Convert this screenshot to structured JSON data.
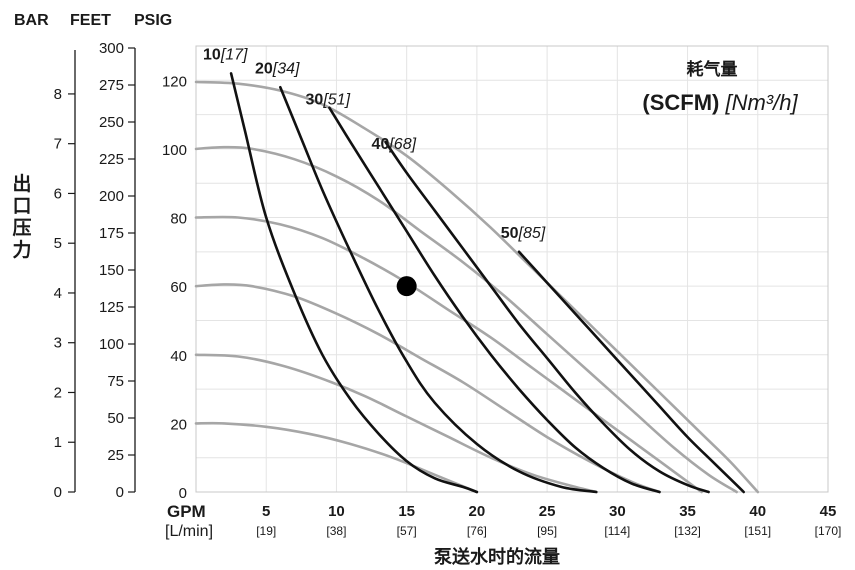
{
  "chart_data": {
    "type": "line",
    "title": "耗气量",
    "subtitle_bold": "(SCFM)",
    "subtitle_italic": "[Nm³/h]",
    "xlabel": "泵送水时的流量",
    "ylabel": "出口压力",
    "unit_header": {
      "bar": "BAR",
      "feet": "FEET",
      "psig": "PSIG"
    },
    "x_unit_primary": "GPM",
    "x_unit_secondary": "[L/min]",
    "xlim": [
      0,
      45
    ],
    "ylim": [
      0,
      130
    ],
    "grid": true,
    "x_ticks": [
      {
        "gpm": 5,
        "lmin": "[19]"
      },
      {
        "gpm": 10,
        "lmin": "[38]"
      },
      {
        "gpm": 15,
        "lmin": "[57]"
      },
      {
        "gpm": 20,
        "lmin": "[76]"
      },
      {
        "gpm": 25,
        "lmin": "[95]"
      },
      {
        "gpm": 30,
        "lmin": "[114]"
      },
      {
        "gpm": 35,
        "lmin": "[132]"
      },
      {
        "gpm": 40,
        "lmin": "[151]"
      },
      {
        "gpm": 45,
        "lmin": "[170]"
      }
    ],
    "psig_ticks": [
      0,
      20,
      40,
      60,
      80,
      100,
      120
    ],
    "feet_ticks": [
      0,
      25,
      50,
      75,
      100,
      125,
      150,
      175,
      200,
      225,
      250,
      275,
      300
    ],
    "bar_ticks": [
      0,
      1,
      2,
      3,
      4,
      5,
      6,
      7,
      8
    ],
    "gray_curves": [
      {
        "points": [
          [
            0,
            119.5
          ],
          [
            3,
            119
          ],
          [
            6,
            117
          ],
          [
            9,
            113
          ],
          [
            12,
            106
          ],
          [
            15,
            98
          ],
          [
            18,
            88
          ],
          [
            21,
            77
          ],
          [
            24,
            65
          ],
          [
            27,
            53
          ],
          [
            30,
            41
          ],
          [
            33,
            29
          ],
          [
            36,
            17
          ],
          [
            38,
            9
          ],
          [
            40,
            0
          ]
        ]
      },
      {
        "points": [
          [
            0,
            100
          ],
          [
            2,
            100.5
          ],
          [
            4,
            100
          ],
          [
            7,
            97
          ],
          [
            10,
            92
          ],
          [
            13,
            85
          ],
          [
            16,
            76
          ],
          [
            19,
            67
          ],
          [
            22,
            57
          ],
          [
            25,
            46
          ],
          [
            28,
            35
          ],
          [
            31,
            24
          ],
          [
            34,
            13
          ],
          [
            36.5,
            5
          ],
          [
            38.5,
            0
          ]
        ]
      },
      {
        "points": [
          [
            0,
            80
          ],
          [
            3,
            80
          ],
          [
            6,
            78
          ],
          [
            9,
            74
          ],
          [
            12,
            68
          ],
          [
            15,
            61
          ],
          [
            18,
            53
          ],
          [
            21,
            45
          ],
          [
            24,
            36
          ],
          [
            27,
            27
          ],
          [
            30,
            18
          ],
          [
            33,
            9
          ],
          [
            36,
            0
          ]
        ]
      },
      {
        "points": [
          [
            0,
            60
          ],
          [
            2,
            60.5
          ],
          [
            4,
            60
          ],
          [
            7,
            57
          ],
          [
            10,
            52
          ],
          [
            13,
            46
          ],
          [
            16,
            39
          ],
          [
            19,
            32
          ],
          [
            22,
            24
          ],
          [
            25,
            16
          ],
          [
            28,
            9
          ],
          [
            31,
            3
          ],
          [
            33,
            0
          ]
        ]
      },
      {
        "points": [
          [
            0,
            40
          ],
          [
            3,
            39.5
          ],
          [
            6,
            37
          ],
          [
            9,
            33
          ],
          [
            12,
            28
          ],
          [
            15,
            22
          ],
          [
            18,
            16
          ],
          [
            21,
            10
          ],
          [
            24,
            5
          ],
          [
            27,
            1.5
          ],
          [
            28.5,
            0
          ]
        ]
      },
      {
        "points": [
          [
            0,
            20
          ],
          [
            2,
            20
          ],
          [
            5,
            19
          ],
          [
            8,
            17
          ],
          [
            11,
            14
          ],
          [
            14,
            10
          ],
          [
            17,
            5
          ],
          [
            20,
            0
          ]
        ]
      }
    ],
    "air_curves": [
      {
        "label_main": "10",
        "label_sub": "[17]",
        "label_at": [
          0.5,
          126
        ],
        "points": [
          [
            2.5,
            122
          ],
          [
            3.5,
            105
          ],
          [
            5,
            80
          ],
          [
            7,
            58
          ],
          [
            9,
            40
          ],
          [
            11,
            27
          ],
          [
            13,
            17
          ],
          [
            15,
            9
          ],
          [
            17,
            4
          ],
          [
            19,
            1.5
          ],
          [
            20,
            0
          ]
        ]
      },
      {
        "label_main": "20",
        "label_sub": "[34]",
        "label_at": [
          4.2,
          122
        ],
        "points": [
          [
            6,
            118
          ],
          [
            7.5,
            103
          ],
          [
            9,
            88
          ],
          [
            11,
            70
          ],
          [
            13,
            53
          ],
          [
            15,
            38
          ],
          [
            17,
            26
          ],
          [
            20,
            14
          ],
          [
            23,
            6
          ],
          [
            26,
            1.5
          ],
          [
            28.5,
            0
          ]
        ]
      },
      {
        "label_main": "30",
        "label_sub": "[51]",
        "label_at": [
          7.8,
          113
        ],
        "points": [
          [
            9.5,
            112
          ],
          [
            11,
            102
          ],
          [
            13,
            89
          ],
          [
            15,
            76
          ],
          [
            17,
            63
          ],
          [
            19,
            51
          ],
          [
            21,
            40
          ],
          [
            23,
            30
          ],
          [
            25,
            21
          ],
          [
            27,
            13
          ],
          [
            29,
            7
          ],
          [
            31,
            2.5
          ],
          [
            33,
            0
          ]
        ]
      },
      {
        "label_main": "40",
        "label_sub": "[68]",
        "label_at": [
          12.5,
          100
        ],
        "points": [
          [
            13.5,
            102
          ],
          [
            15,
            93
          ],
          [
            17,
            82
          ],
          [
            19,
            71
          ],
          [
            21,
            60
          ],
          [
            23,
            49
          ],
          [
            25,
            39
          ],
          [
            27,
            29
          ],
          [
            29,
            20
          ],
          [
            31,
            12
          ],
          [
            33,
            6
          ],
          [
            35,
            2
          ],
          [
            36.5,
            0
          ]
        ]
      },
      {
        "label_main": "50",
        "label_sub": "[85]",
        "label_at": [
          21.7,
          74
        ],
        "points": [
          [
            23,
            70
          ],
          [
            25,
            61
          ],
          [
            27,
            52
          ],
          [
            29,
            43
          ],
          [
            31,
            34
          ],
          [
            33,
            25
          ],
          [
            35,
            16
          ],
          [
            37,
            8
          ],
          [
            38.5,
            2
          ],
          [
            39,
            0
          ]
        ]
      }
    ],
    "operating_point": {
      "x": 15,
      "y": 60
    }
  }
}
